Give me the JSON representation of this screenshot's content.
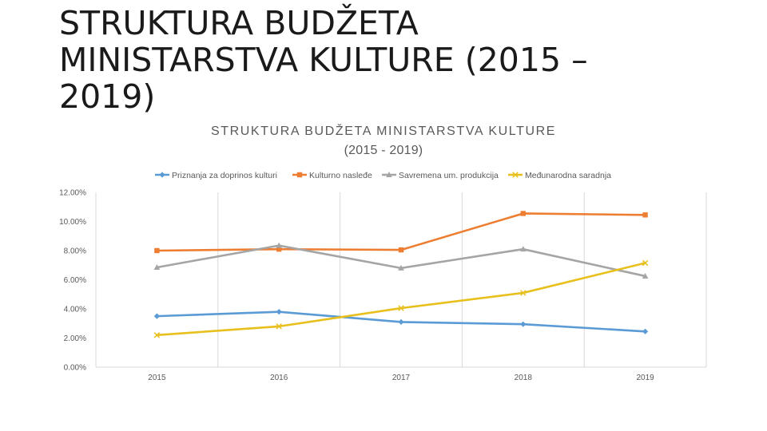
{
  "slide": {
    "title": "STRUKTURA BUDŽETA MINISTARSTVA KULTURE (2015 – 2019)"
  },
  "chart_data": {
    "type": "line",
    "title": "STRUKTURA BUDŽETA MINISTARSTVA KULTURE",
    "subtitle": "(2015 - 2019)",
    "xlabel": "",
    "ylabel": "",
    "x": [
      "2015",
      "2016",
      "2017",
      "2018",
      "2019"
    ],
    "ylim": [
      0,
      12
    ],
    "yticks": [
      0,
      2,
      4,
      6,
      8,
      10,
      12
    ],
    "ytick_labels": [
      "0.00%",
      "2.00%",
      "4.00%",
      "6.00%",
      "8.00%",
      "10.00%",
      "12.00%"
    ],
    "grid": "vertical",
    "legend_position": "top",
    "series": [
      {
        "name": "Priznanja za doprinos kulturi",
        "color": "#5b9bd5",
        "marker": "diamond",
        "values": [
          3.5,
          3.8,
          3.1,
          2.95,
          2.45
        ]
      },
      {
        "name": "Kulturno nasleđe",
        "color": "#ed7d31",
        "marker": "square",
        "values": [
          8.0,
          8.1,
          8.05,
          10.55,
          10.45
        ]
      },
      {
        "name": "Savremena um. produkcija",
        "color": "#a5a5a5",
        "marker": "triangle",
        "values": [
          6.85,
          8.35,
          6.8,
          8.1,
          6.25
        ]
      },
      {
        "name": "Međunarodna saradnja",
        "color": "#e8c01e",
        "marker": "x",
        "values": [
          2.2,
          2.8,
          4.05,
          5.1,
          7.15
        ]
      }
    ]
  }
}
